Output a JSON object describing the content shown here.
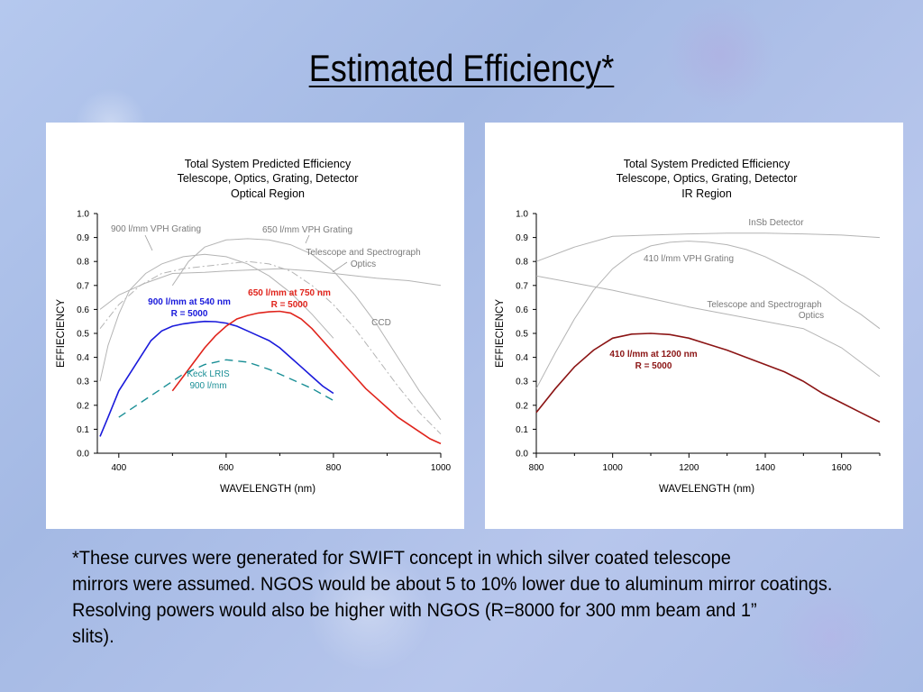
{
  "slide": {
    "title": "Estimated Efficiency*",
    "footnote_lines": [
      "*These curves were generated for SWIFT concept in which silver coated telescope",
      "mirrors were assumed.  NGOS would be about 5 to 10% lower due to aluminum mirror coatings.",
      "Resolving powers would also be higher with NGOS (R=8000 for 300 mm beam and 1”",
      "slits)."
    ]
  },
  "colors": {
    "blue": "#1a1adb",
    "red": "#e0241c",
    "teal": "#1a8f96",
    "darkred": "#8b1414",
    "gray": "#b4b4b4",
    "gray_text": "#7a7a7a"
  },
  "chart_data": [
    {
      "type": "line",
      "title_lines": [
        "Total System Predicted Efficiency",
        "Telescope, Optics, Grating, Detector",
        "Optical Region"
      ],
      "xlabel": "WAVELENGTH (nm)",
      "ylabel": "EFFIECIENCY",
      "xlim": [
        360,
        1000
      ],
      "ylim": [
        0,
        1.0
      ],
      "xticks": [
        400,
        600,
        800,
        1000
      ],
      "yticks": [
        0.0,
        0.1,
        0.2,
        0.3,
        0.4,
        0.5,
        0.6,
        0.7,
        0.8,
        0.9,
        1.0
      ],
      "grid": false,
      "series": [
        {
          "name": "900 l/mm at 540 nm",
          "color": "#1a1adb",
          "style": "solid",
          "x": [
            365,
            380,
            400,
            420,
            440,
            460,
            480,
            500,
            520,
            540,
            560,
            580,
            600,
            620,
            640,
            660,
            680,
            700,
            720,
            740,
            760,
            780,
            800
          ],
          "y": [
            0.07,
            0.15,
            0.26,
            0.33,
            0.4,
            0.47,
            0.51,
            0.53,
            0.54,
            0.546,
            0.55,
            0.549,
            0.543,
            0.53,
            0.51,
            0.49,
            0.47,
            0.44,
            0.4,
            0.36,
            0.32,
            0.28,
            0.25
          ]
        },
        {
          "name": "650 l/mm at 750 nm",
          "color": "#e0241c",
          "style": "solid",
          "x": [
            500,
            520,
            540,
            560,
            580,
            600,
            620,
            640,
            660,
            680,
            700,
            720,
            740,
            760,
            780,
            800,
            820,
            840,
            860,
            880,
            900,
            920,
            940,
            960,
            980,
            1000
          ],
          "y": [
            0.26,
            0.32,
            0.38,
            0.44,
            0.49,
            0.53,
            0.56,
            0.575,
            0.585,
            0.59,
            0.592,
            0.585,
            0.56,
            0.52,
            0.47,
            0.42,
            0.37,
            0.32,
            0.27,
            0.23,
            0.19,
            0.15,
            0.12,
            0.09,
            0.06,
            0.04
          ]
        },
        {
          "name": "Keck LRIS 900 l/mm",
          "color": "#1a8f96",
          "style": "dashed",
          "x": [
            400,
            440,
            480,
            520,
            560,
            600,
            640,
            680,
            720,
            760,
            800
          ],
          "y": [
            0.15,
            0.21,
            0.27,
            0.33,
            0.37,
            0.39,
            0.38,
            0.35,
            0.31,
            0.27,
            0.22
          ]
        },
        {
          "name": "900 l/mm VPH Grating",
          "color": "#b4b4b4",
          "style": "thin",
          "x": [
            365,
            380,
            400,
            420,
            450,
            480,
            520,
            560,
            600,
            640,
            680,
            720,
            760,
            800
          ],
          "y": [
            0.3,
            0.45,
            0.58,
            0.68,
            0.75,
            0.79,
            0.82,
            0.83,
            0.82,
            0.79,
            0.74,
            0.67,
            0.58,
            0.48
          ]
        },
        {
          "name": "650 l/mm VPH Grating",
          "color": "#b4b4b4",
          "style": "thin",
          "x": [
            500,
            530,
            560,
            600,
            640,
            680,
            720,
            760,
            800,
            840,
            880,
            920,
            960,
            1000
          ],
          "y": [
            0.7,
            0.8,
            0.86,
            0.89,
            0.895,
            0.89,
            0.87,
            0.83,
            0.76,
            0.66,
            0.54,
            0.4,
            0.26,
            0.14
          ]
        },
        {
          "name": "Telescope and Spectrograph Optics",
          "color": "#b4b4b4",
          "style": "thin",
          "x": [
            365,
            400,
            450,
            500,
            560,
            600,
            650,
            700,
            760,
            820,
            880,
            940,
            1000
          ],
          "y": [
            0.6,
            0.66,
            0.71,
            0.75,
            0.755,
            0.76,
            0.765,
            0.77,
            0.76,
            0.745,
            0.73,
            0.72,
            0.7
          ]
        },
        {
          "name": "CCD",
          "color": "#b4b4b4",
          "style": "dashdot",
          "x": [
            365,
            400,
            440,
            480,
            520,
            560,
            600,
            640,
            680,
            720,
            760,
            800,
            840,
            880,
            920,
            960,
            1000
          ],
          "y": [
            0.52,
            0.62,
            0.7,
            0.75,
            0.77,
            0.78,
            0.79,
            0.8,
            0.79,
            0.76,
            0.7,
            0.62,
            0.52,
            0.4,
            0.28,
            0.17,
            0.08
          ]
        }
      ],
      "annotations": [
        {
          "text": "900 l/mm VPH Grating",
          "color": "#7a7a7a"
        },
        {
          "text": "650 l/mm VPH Grating",
          "color": "#7a7a7a"
        },
        {
          "text": "Telescope and Spectrograph",
          "color": "#7a7a7a"
        },
        {
          "text": "Optics",
          "color": "#7a7a7a"
        },
        {
          "text": "900 l/mm at 540 nm",
          "color": "#1a1adb",
          "bold": true
        },
        {
          "text": "R = 5000",
          "color": "#1a1adb",
          "bold": true
        },
        {
          "text": "650 l/mm at 750 nm",
          "color": "#e0241c",
          "bold": true
        },
        {
          "text": "R = 5000",
          "color": "#e0241c",
          "bold": true
        },
        {
          "text": "CCD",
          "color": "#7a7a7a"
        },
        {
          "text": "Keck LRIS",
          "color": "#1a8f96"
        },
        {
          "text": "900 l/mm",
          "color": "#1a8f96"
        }
      ]
    },
    {
      "type": "line",
      "title_lines": [
        "Total System Predicted Efficiency",
        "Telescope, Optics, Grating, Detector",
        "IR Region"
      ],
      "xlabel": "WAVELENGTH (nm)",
      "ylabel": "EFFIECIENCY",
      "xlim": [
        800,
        1700
      ],
      "ylim": [
        0,
        1.0
      ],
      "xticks": [
        800,
        1000,
        1200,
        1400,
        1600
      ],
      "yticks": [
        0.0,
        0.1,
        0.2,
        0.3,
        0.4,
        0.5,
        0.6,
        0.7,
        0.8,
        0.9,
        1.0
      ],
      "grid": false,
      "series": [
        {
          "name": "410 l/mm at 1200 nm",
          "color": "#8b1414",
          "style": "solid",
          "x": [
            800,
            850,
            900,
            950,
            1000,
            1050,
            1100,
            1150,
            1200,
            1250,
            1300,
            1350,
            1400,
            1450,
            1500,
            1550,
            1600,
            1650,
            1700
          ],
          "y": [
            0.17,
            0.27,
            0.36,
            0.43,
            0.48,
            0.497,
            0.5,
            0.495,
            0.48,
            0.455,
            0.43,
            0.4,
            0.37,
            0.34,
            0.3,
            0.25,
            0.21,
            0.17,
            0.13
          ]
        },
        {
          "name": "InSb Detector",
          "color": "#b4b4b4",
          "style": "thin",
          "x": [
            800,
            900,
            1000,
            1100,
            1200,
            1300,
            1400,
            1500,
            1600,
            1700
          ],
          "y": [
            0.8,
            0.86,
            0.905,
            0.91,
            0.915,
            0.918,
            0.918,
            0.915,
            0.91,
            0.9
          ]
        },
        {
          "name": "410 l/mm VPH Grating",
          "color": "#b4b4b4",
          "style": "thin",
          "x": [
            800,
            850,
            900,
            950,
            1000,
            1050,
            1100,
            1150,
            1200,
            1250,
            1300,
            1350,
            1400,
            1450,
            1500,
            1550,
            1600,
            1650,
            1700
          ],
          "y": [
            0.27,
            0.42,
            0.56,
            0.68,
            0.77,
            0.83,
            0.865,
            0.88,
            0.885,
            0.88,
            0.87,
            0.85,
            0.82,
            0.78,
            0.74,
            0.69,
            0.63,
            0.58,
            0.52
          ]
        },
        {
          "name": "Telescope and Spectrograph Optics",
          "color": "#b4b4b4",
          "style": "thin",
          "x": [
            800,
            900,
            1000,
            1100,
            1200,
            1300,
            1400,
            1500,
            1600,
            1700
          ],
          "y": [
            0.74,
            0.71,
            0.68,
            0.645,
            0.61,
            0.58,
            0.55,
            0.52,
            0.44,
            0.32
          ]
        }
      ],
      "annotations": [
        {
          "text": "InSb Detector",
          "color": "#7a7a7a"
        },
        {
          "text": "410 l/mm VPH Grating",
          "color": "#7a7a7a"
        },
        {
          "text": "Telescope and Spectrograph",
          "color": "#7a7a7a"
        },
        {
          "text": "Optics",
          "color": "#7a7a7a"
        },
        {
          "text": "410 l/mm at 1200 nm",
          "color": "#8b1414",
          "bold": true
        },
        {
          "text": "R = 5000",
          "color": "#8b1414",
          "bold": true
        }
      ]
    }
  ]
}
